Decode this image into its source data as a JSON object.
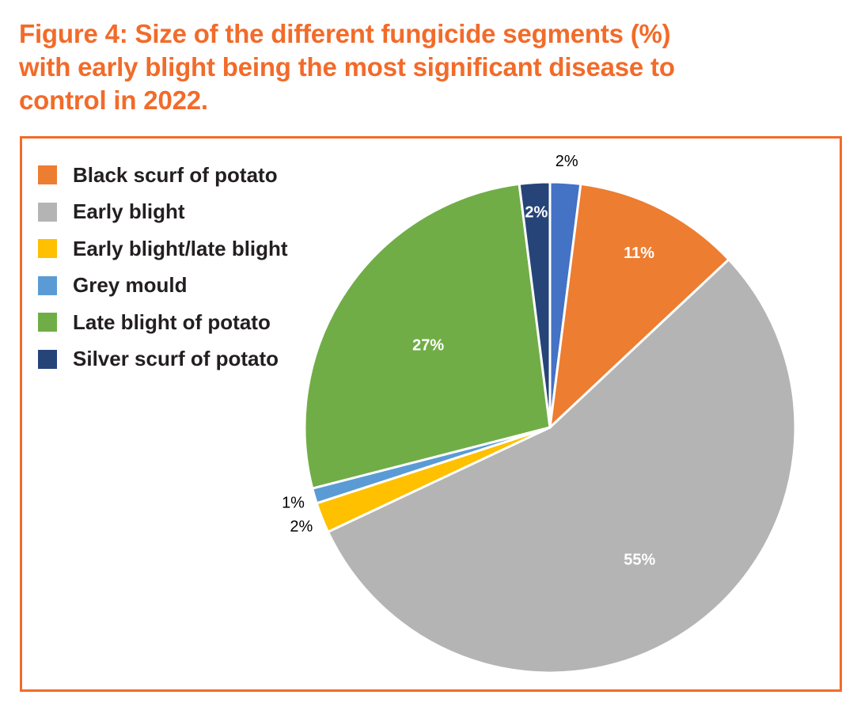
{
  "title_lines": [
    "Figure 4: Size of the different fungicide segments (%)",
    "with early blight being the most significant disease to",
    "control in 2022."
  ],
  "chart_data": {
    "type": "pie",
    "title": "Figure 4: Size of the different fungicide segments (%) with early blight being the most significant disease to control in 2022.",
    "start_angle_deg": 0,
    "direction": "clockwise",
    "legend_position": "top-left",
    "slices": [
      {
        "name": "",
        "value": 2,
        "label": "2%",
        "color": "#4472C4",
        "label_position": "outside",
        "in_legend": false
      },
      {
        "name": "Black scurf of potato",
        "value": 11,
        "label": "11%",
        "color": "#ED7D31",
        "label_position": "inside",
        "in_legend": true
      },
      {
        "name": "Early blight",
        "value": 55,
        "label": "55%",
        "color": "#B4B4B4",
        "label_position": "inside",
        "in_legend": true
      },
      {
        "name": "Early blight/late blight",
        "value": 2,
        "label": "2%",
        "color": "#FFC000",
        "label_position": "outside",
        "in_legend": true
      },
      {
        "name": "Grey mould",
        "value": 1,
        "label": "1%",
        "color": "#5B9BD5",
        "label_position": "outside",
        "in_legend": true
      },
      {
        "name": "Late blight of potato",
        "value": 27,
        "label": "27%",
        "color": "#70AD47",
        "label_position": "inside",
        "in_legend": true
      },
      {
        "name": "Silver scurf of potato",
        "value": 2,
        "label": "2%",
        "color": "#264478",
        "label_position": "inside",
        "in_legend": true
      }
    ],
    "legend_order": [
      1,
      2,
      3,
      4,
      5,
      6
    ]
  },
  "colors": {
    "accent": "#F26B2A",
    "text": "#231F20"
  }
}
